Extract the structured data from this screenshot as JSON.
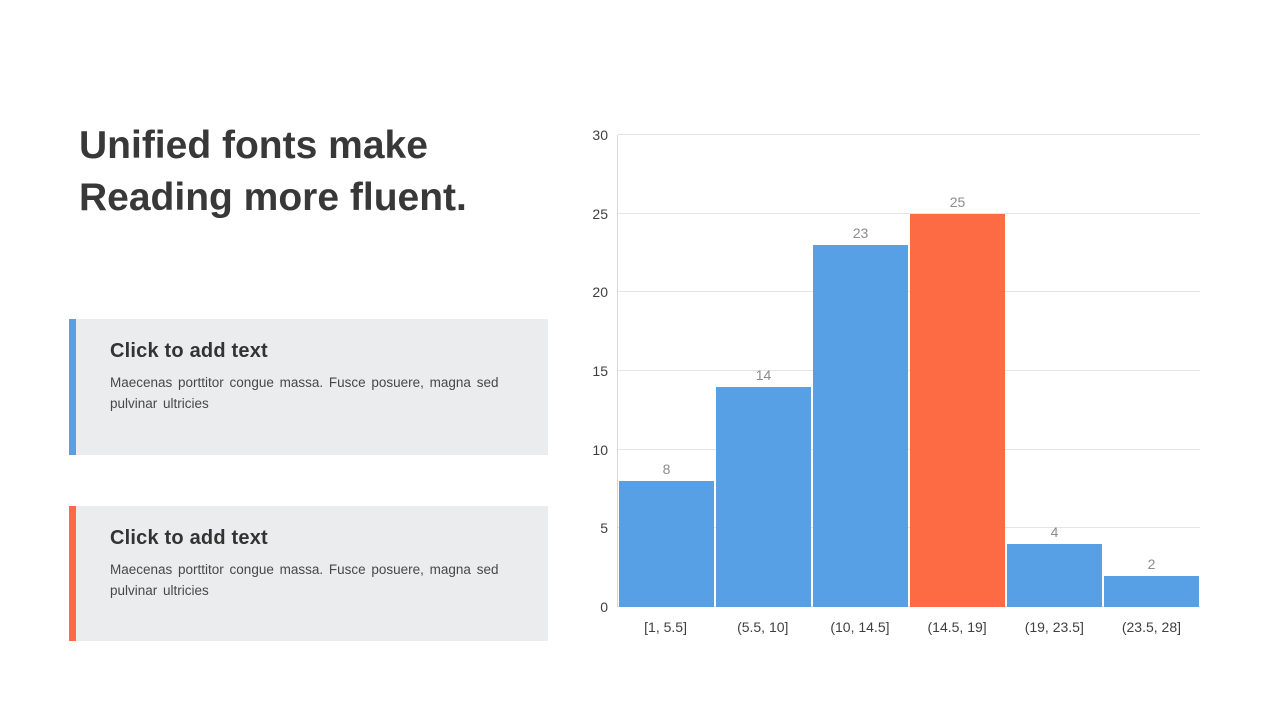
{
  "slide": {
    "title": {
      "text": "Unified fonts make Reading more fluent.",
      "lines": [
        "Unified fonts make",
        "Reading more fluent."
      ]
    },
    "callouts": [
      {
        "heading": "Click to add text",
        "body": "Maecenas porttitor congue massa. Fusce posuere, magna sed pulvinar ultricies",
        "accent_color": "#58a0e6"
      },
      {
        "heading": "Click to add text",
        "body": "Maecenas porttitor congue massa. Fusce posuere, magna sed pulvinar ultricies",
        "accent_color": "#fc6b43"
      }
    ]
  },
  "chart_data": {
    "type": "bar",
    "subtype": "histogram",
    "title": "",
    "xlabel": "",
    "ylabel": "",
    "categories": [
      "[1, 5.5]",
      "(5.5, 10]",
      "(10, 14.5]",
      "(14.5, 19]",
      "(19, 23.5]",
      "(23.5, 28]"
    ],
    "values": [
      8,
      14,
      23,
      25,
      4,
      2
    ],
    "highlighted_index": 3,
    "ylim": [
      0,
      30
    ],
    "yticks": [
      0,
      5,
      10,
      15,
      20,
      25,
      30
    ],
    "grid": true,
    "legend_position": "none",
    "data_labels_shown": true,
    "colors": {
      "bar": "#58a0e6",
      "highlight": "#fc6b43",
      "grid": "#e4e4e4",
      "axis_line": "#d8d8d8",
      "tick_label": "#3f3f3f",
      "data_label": "#8c8c8c"
    }
  }
}
